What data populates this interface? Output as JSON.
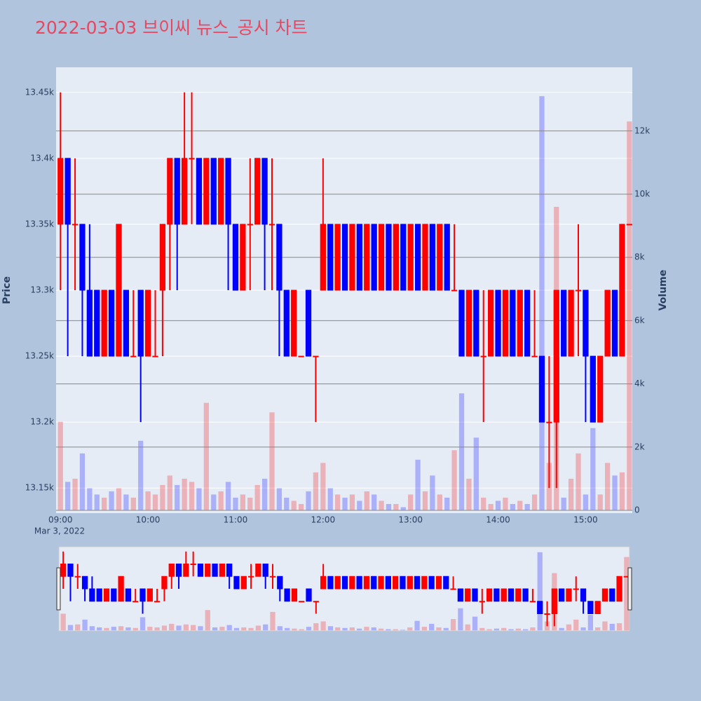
{
  "chart_data": {
    "type": "candlestick",
    "title": "2022-03-03 브이씨 뉴스_공시 차트",
    "ylabel": "Price",
    "y2label": "Volume",
    "x_date_label": "Mar 3, 2022",
    "increasing_color": "#ff0000",
    "decreasing_color": "#0000ff",
    "x": [
      "09:00",
      "09:05",
      "09:10",
      "09:15",
      "09:20",
      "09:25",
      "09:30",
      "09:35",
      "09:40",
      "09:45",
      "09:50",
      "09:55",
      "10:00",
      "10:05",
      "10:10",
      "10:15",
      "10:20",
      "10:25",
      "10:30",
      "10:35",
      "10:40",
      "10:45",
      "10:50",
      "10:55",
      "11:00",
      "11:05",
      "11:10",
      "11:15",
      "11:20",
      "11:25",
      "11:30",
      "11:35",
      "11:40",
      "11:45",
      "11:50",
      "11:55",
      "12:00",
      "12:05",
      "12:10",
      "12:15",
      "12:20",
      "12:25",
      "12:30",
      "12:35",
      "12:40",
      "12:45",
      "12:50",
      "12:55",
      "13:00",
      "13:05",
      "13:10",
      "13:15",
      "13:20",
      "13:25",
      "13:30",
      "13:35",
      "13:40",
      "13:45",
      "13:50",
      "13:55",
      "14:00",
      "14:05",
      "14:10",
      "14:15",
      "14:20",
      "14:25",
      "14:30",
      "14:35",
      "14:40",
      "14:45",
      "14:50",
      "14:55",
      "15:00",
      "15:05",
      "15:10",
      "15:15",
      "15:20",
      "15:25",
      "15:30"
    ],
    "open": [
      13350,
      13400,
      13350,
      13350,
      13300,
      13300,
      13250,
      13300,
      13250,
      13300,
      13250,
      13300,
      13250,
      13250,
      13300,
      13350,
      13400,
      13350,
      13400,
      13400,
      13350,
      13400,
      13350,
      13400,
      13350,
      13300,
      13350,
      13350,
      13400,
      13350,
      13350,
      13300,
      13250,
      13250,
      13300,
      13250,
      13300,
      13350,
      13300,
      13350,
      13300,
      13350,
      13300,
      13350,
      13300,
      13350,
      13300,
      13350,
      13300,
      13350,
      13300,
      13350,
      13300,
      13350,
      13300,
      13300,
      13250,
      13300,
      13250,
      13250,
      13300,
      13250,
      13300,
      13250,
      13300,
      13250,
      13250,
      13200,
      13200,
      13300,
      13250,
      13300,
      13300,
      13250,
      13200,
      13250,
      13300,
      13250,
      13350
    ],
    "high": [
      13450,
      13400,
      13400,
      13350,
      13350,
      13300,
      13300,
      13300,
      13350,
      13300,
      13300,
      13300,
      13300,
      13300,
      13350,
      13400,
      13400,
      13450,
      13450,
      13400,
      13400,
      13400,
      13400,
      13400,
      13350,
      13350,
      13400,
      13400,
      13400,
      13400,
      13350,
      13300,
      13300,
      13250,
      13300,
      13250,
      13400,
      13350,
      13350,
      13350,
      13350,
      13350,
      13350,
      13350,
      13350,
      13350,
      13350,
      13350,
      13350,
      13350,
      13350,
      13350,
      13350,
      13350,
      13350,
      13300,
      13300,
      13300,
      13300,
      13300,
      13300,
      13300,
      13300,
      13300,
      13300,
      13300,
      13250,
      13250,
      13300,
      13300,
      13300,
      13350,
      13300,
      13250,
      13250,
      13300,
      13300,
      13350,
      13350
    ],
    "low": [
      13300,
      13250,
      13300,
      13250,
      13250,
      13250,
      13250,
      13250,
      13250,
      13250,
      13250,
      13200,
      13250,
      13250,
      13250,
      13300,
      13300,
      13350,
      13350,
      13350,
      13350,
      13350,
      13350,
      13300,
      13300,
      13300,
      13300,
      13350,
      13300,
      13300,
      13250,
      13250,
      13250,
      13250,
      13250,
      13200,
      13300,
      13300,
      13300,
      13300,
      13300,
      13300,
      13300,
      13300,
      13300,
      13300,
      13300,
      13300,
      13300,
      13300,
      13300,
      13300,
      13300,
      13300,
      13300,
      13250,
      13250,
      13250,
      13200,
      13250,
      13250,
      13250,
      13250,
      13250,
      13250,
      13250,
      13200,
      13150,
      13150,
      13250,
      13250,
      13250,
      13200,
      13200,
      13200,
      13250,
      13250,
      13250,
      13350
    ],
    "close": [
      13400,
      13350,
      13350,
      13300,
      13250,
      13250,
      13300,
      13250,
      13350,
      13250,
      13250,
      13250,
      13300,
      13250,
      13350,
      13400,
      13350,
      13400,
      13400,
      13350,
      13400,
      13350,
      13400,
      13350,
      13300,
      13350,
      13350,
      13400,
      13350,
      13350,
      13300,
      13250,
      13300,
      13250,
      13250,
      13250,
      13350,
      13300,
      13350,
      13300,
      13350,
      13300,
      13350,
      13300,
      13350,
      13300,
      13350,
      13300,
      13350,
      13300,
      13350,
      13300,
      13350,
      13300,
      13300,
      13250,
      13300,
      13250,
      13250,
      13300,
      13250,
      13300,
      13250,
      13300,
      13250,
      13250,
      13200,
      13200,
      13300,
      13250,
      13300,
      13300,
      13250,
      13200,
      13250,
      13300,
      13250,
      13350,
      13350
    ],
    "volume": [
      2800,
      900,
      1000,
      1800,
      700,
      500,
      400,
      600,
      700,
      500,
      400,
      2200,
      600,
      500,
      800,
      1100,
      800,
      1000,
      900,
      700,
      3400,
      500,
      600,
      900,
      400,
      500,
      400,
      800,
      1000,
      3100,
      700,
      400,
      300,
      200,
      600,
      1200,
      1500,
      700,
      500,
      400,
      500,
      300,
      600,
      500,
      300,
      200,
      200,
      100,
      500,
      1600,
      600,
      1100,
      500,
      400,
      1900,
      3700,
      1000,
      2300,
      400,
      200,
      300,
      400,
      200,
      300,
      200,
      500,
      13100,
      1500,
      9600,
      400,
      1000,
      1800,
      500,
      2600,
      500,
      1500,
      1100,
      1200,
      12300
    ],
    "xlim": [
      "08:57",
      "15:32"
    ],
    "xticks": [
      "09:00",
      "10:00",
      "11:00",
      "12:00",
      "13:00",
      "14:00",
      "15:00"
    ],
    "ylim": [
      13131,
      13469
    ],
    "yticks": [
      {
        "value": 13150,
        "label": "13.15k"
      },
      {
        "value": 13200,
        "label": "13.2k"
      },
      {
        "value": 13250,
        "label": "13.25k"
      },
      {
        "value": 13300,
        "label": "13.3k"
      },
      {
        "value": 13350,
        "label": "13.35k"
      },
      {
        "value": 13400,
        "label": "13.4k"
      },
      {
        "value": 13450,
        "label": "13.45k"
      }
    ],
    "y2lim": [
      -89,
      14013
    ],
    "y2ticks": [
      0,
      {
        "value": 2000,
        "label": "2k"
      },
      {
        "value": 4000,
        "label": "4k"
      },
      {
        "value": 6000,
        "label": "6k"
      },
      {
        "value": 8000,
        "label": "8k"
      },
      {
        "value": 10000,
        "label": "10k"
      },
      {
        "value": 12000,
        "label": "12k"
      }
    ]
  }
}
